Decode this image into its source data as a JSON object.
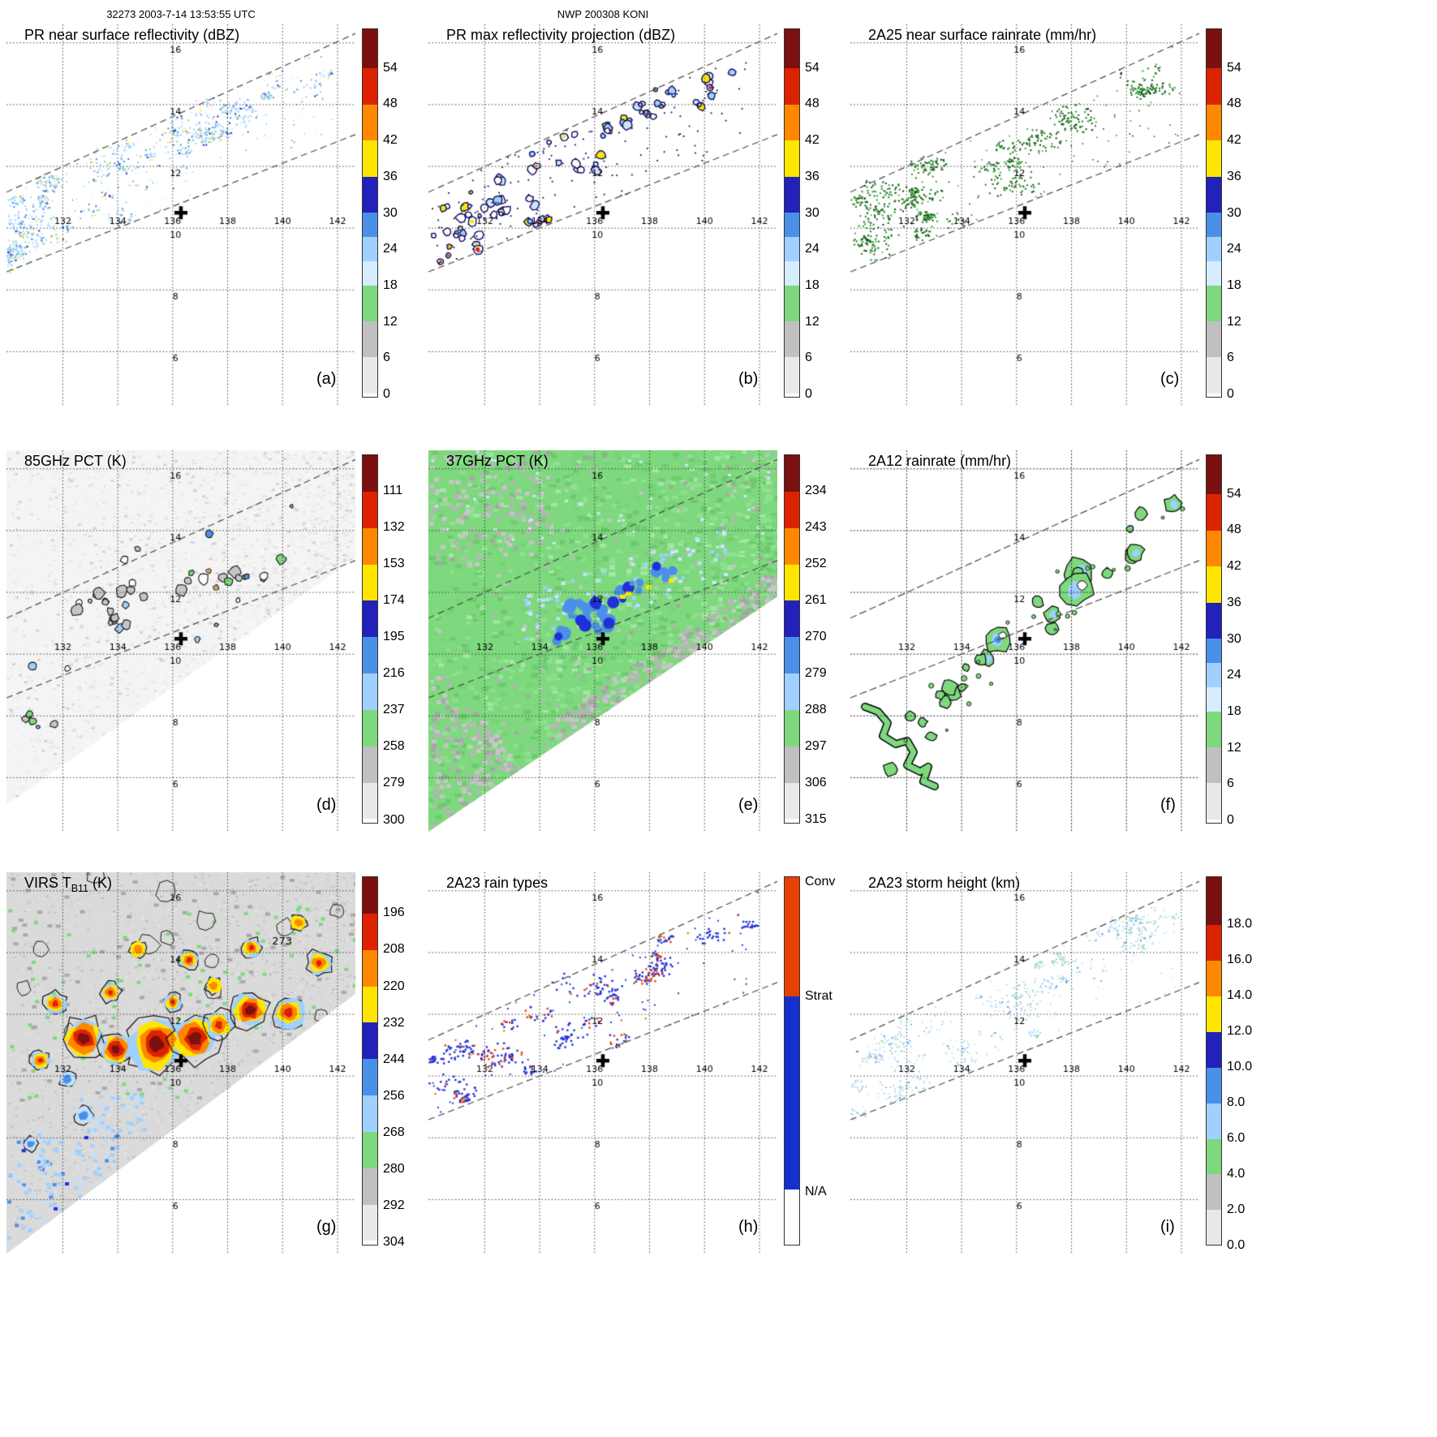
{
  "header": {
    "left": "32273 2003-7-14 13:53:55 UTC",
    "center": "NWP 200308 KONI"
  },
  "map": {
    "lon_min": 129.95,
    "lon_max": 142.65,
    "lat_min": 4.25,
    "lat_max": 16.6,
    "lon_ticks": [
      {
        "v": 132,
        "label": "132"
      },
      {
        "v": 134,
        "label": "134"
      },
      {
        "v": 136,
        "label": "136"
      },
      {
        "v": 138,
        "label": "138"
      },
      {
        "v": 140,
        "label": "140"
      },
      {
        "v": 142,
        "label": "142"
      }
    ],
    "lat_ticks": [
      {
        "v": 16,
        "label": "16"
      },
      {
        "v": 14,
        "label": "14"
      },
      {
        "v": 12,
        "label": "12"
      },
      {
        "v": 10,
        "label": "10"
      },
      {
        "v": 8,
        "label": "8"
      },
      {
        "v": 6,
        "label": "6"
      }
    ],
    "cross": {
      "lon": 136.3,
      "lat": 10.5
    },
    "swath_lines": {
      "upper": [
        [
          0,
          0.44
        ],
        [
          1,
          0.024
        ]
      ],
      "lower": [
        [
          0,
          0.649
        ],
        [
          1,
          0.289
        ]
      ]
    }
  },
  "colorbars": {
    "dbz": {
      "ticks": [
        {
          "label": "54",
          "pos": 0.107
        },
        {
          "label": "48",
          "pos": 0.205
        },
        {
          "label": "42",
          "pos": 0.303
        },
        {
          "label": "36",
          "pos": 0.402
        },
        {
          "label": "30",
          "pos": 0.5
        },
        {
          "label": "24",
          "pos": 0.598
        },
        {
          "label": "18",
          "pos": 0.697
        },
        {
          "label": "12",
          "pos": 0.795
        },
        {
          "label": "6",
          "pos": 0.893
        },
        {
          "label": "0",
          "pos": 0.992
        }
      ],
      "segments": [
        {
          "color": "#7b1010",
          "frac": 0.107
        },
        {
          "color": "#dd2200",
          "frac": 0.098
        },
        {
          "color": "#ff8800",
          "frac": 0.098
        },
        {
          "color": "#ffe600",
          "frac": 0.098
        },
        {
          "color": "#2222bb",
          "frac": 0.098
        },
        {
          "color": "#4a90e8",
          "frac": 0.066
        },
        {
          "color": "#9fd0ff",
          "frac": 0.066
        },
        {
          "color": "#d6ecff",
          "frac": 0.066
        },
        {
          "color": "#7ed87e",
          "frac": 0.098
        },
        {
          "color": "#c0c0c0",
          "frac": 0.098
        },
        {
          "color": "#e9e9e9",
          "frac": 0.098
        },
        {
          "color": "#ffffff",
          "frac": 0.009
        }
      ]
    },
    "pct85": {
      "ticks": [
        {
          "label": "111",
          "pos": 0.099
        },
        {
          "label": "132",
          "pos": 0.198
        },
        {
          "label": "153",
          "pos": 0.297
        },
        {
          "label": "174",
          "pos": 0.396
        },
        {
          "label": "195",
          "pos": 0.495
        },
        {
          "label": "216",
          "pos": 0.594
        },
        {
          "label": "237",
          "pos": 0.693
        },
        {
          "label": "258",
          "pos": 0.792
        },
        {
          "label": "279",
          "pos": 0.891
        },
        {
          "label": "300",
          "pos": 0.991
        }
      ],
      "segments": [
        {
          "color": "#7b1010",
          "frac": 0.099
        },
        {
          "color": "#dd2200",
          "frac": 0.099
        },
        {
          "color": "#ff8800",
          "frac": 0.099
        },
        {
          "color": "#ffe600",
          "frac": 0.099
        },
        {
          "color": "#2222bb",
          "frac": 0.099
        },
        {
          "color": "#4a90e8",
          "frac": 0.099
        },
        {
          "color": "#9fd0ff",
          "frac": 0.099
        },
        {
          "color": "#7ed87e",
          "frac": 0.099
        },
        {
          "color": "#c0c0c0",
          "frac": 0.099
        },
        {
          "color": "#e9e9e9",
          "frac": 0.099
        },
        {
          "color": "#ffffff",
          "frac": 0.01
        }
      ]
    },
    "pct37": {
      "ticks": [
        {
          "label": "234",
          "pos": 0.099
        },
        {
          "label": "243",
          "pos": 0.198
        },
        {
          "label": "252",
          "pos": 0.297
        },
        {
          "label": "261",
          "pos": 0.396
        },
        {
          "label": "270",
          "pos": 0.495
        },
        {
          "label": "279",
          "pos": 0.593
        },
        {
          "label": "288",
          "pos": 0.692
        },
        {
          "label": "297",
          "pos": 0.791
        },
        {
          "label": "306",
          "pos": 0.89
        },
        {
          "label": "315",
          "pos": 0.989
        }
      ],
      "segments": [
        {
          "color": "#7b1010",
          "frac": 0.099
        },
        {
          "color": "#dd2200",
          "frac": 0.099
        },
        {
          "color": "#ff8800",
          "frac": 0.099
        },
        {
          "color": "#ffe600",
          "frac": 0.099
        },
        {
          "color": "#2222bb",
          "frac": 0.099
        },
        {
          "color": "#4a90e8",
          "frac": 0.099
        },
        {
          "color": "#9fd0ff",
          "frac": 0.099
        },
        {
          "color": "#7ed87e",
          "frac": 0.099
        },
        {
          "color": "#c0c0c0",
          "frac": 0.099
        },
        {
          "color": "#e9e9e9",
          "frac": 0.099
        },
        {
          "color": "#ffffff",
          "frac": 0.01
        }
      ]
    },
    "virs": {
      "ticks": [
        {
          "label": "196",
          "pos": 0.099
        },
        {
          "label": "208",
          "pos": 0.198
        },
        {
          "label": "220",
          "pos": 0.298
        },
        {
          "label": "232",
          "pos": 0.397
        },
        {
          "label": "244",
          "pos": 0.496
        },
        {
          "label": "256",
          "pos": 0.595
        },
        {
          "label": "268",
          "pos": 0.694
        },
        {
          "label": "280",
          "pos": 0.793
        },
        {
          "label": "292",
          "pos": 0.893
        },
        {
          "label": "304",
          "pos": 0.992
        }
      ],
      "segments": [
        {
          "color": "#7b1010",
          "frac": 0.099
        },
        {
          "color": "#dd2200",
          "frac": 0.099
        },
        {
          "color": "#ff8800",
          "frac": 0.099
        },
        {
          "color": "#ffe600",
          "frac": 0.099
        },
        {
          "color": "#2222bb",
          "frac": 0.099
        },
        {
          "color": "#4a90e8",
          "frac": 0.099
        },
        {
          "color": "#9fd0ff",
          "frac": 0.099
        },
        {
          "color": "#7ed87e",
          "frac": 0.099
        },
        {
          "color": "#c0c0c0",
          "frac": 0.099
        },
        {
          "color": "#e9e9e9",
          "frac": 0.099
        },
        {
          "color": "#ffffff",
          "frac": 0.01
        }
      ]
    },
    "height": {
      "ticks": [
        {
          "label": "18.0",
          "pos": 0.13
        },
        {
          "label": "16.0",
          "pos": 0.227
        },
        {
          "label": "14.0",
          "pos": 0.324
        },
        {
          "label": "12.0",
          "pos": 0.42
        },
        {
          "label": "10.0",
          "pos": 0.517
        },
        {
          "label": "8.0",
          "pos": 0.614
        },
        {
          "label": "6.0",
          "pos": 0.71
        },
        {
          "label": "4.0",
          "pos": 0.807
        },
        {
          "label": "2.0",
          "pos": 0.903
        },
        {
          "label": "0.0",
          "pos": 1.0
        }
      ],
      "segments": [
        {
          "color": "#7b1010",
          "frac": 0.13
        },
        {
          "color": "#dd2200",
          "frac": 0.097
        },
        {
          "color": "#ff8800",
          "frac": 0.097
        },
        {
          "color": "#ffe600",
          "frac": 0.097
        },
        {
          "color": "#2222bb",
          "frac": 0.097
        },
        {
          "color": "#4a90e8",
          "frac": 0.097
        },
        {
          "color": "#9fd0ff",
          "frac": 0.097
        },
        {
          "color": "#7ed87e",
          "frac": 0.097
        },
        {
          "color": "#c0c0c0",
          "frac": 0.097
        },
        {
          "color": "#e9e9e9",
          "frac": 0.094
        }
      ]
    },
    "raintype": {
      "ticks": [
        {
          "label": "Conv",
          "pos": 0.01
        },
        {
          "label": "Strat",
          "pos": 0.325
        },
        {
          "label": "N/A",
          "pos": 0.855
        }
      ],
      "segments": [
        {
          "color": "#e84000",
          "frac": 0.325
        },
        {
          "color": "#1530cf",
          "frac": 0.525
        },
        {
          "color": "#ffffff",
          "frac": 0.15
        }
      ]
    }
  },
  "chart_data": [
    {
      "id": "a",
      "label": "(a)",
      "type": "heatmap",
      "title": "PR near surface reflectivity (dBZ)",
      "colorbar": "dbz",
      "render": {
        "kind": "speckle",
        "seed": 101,
        "size": 2,
        "clusters": 56,
        "per": [
          8,
          34
        ],
        "tExp": 1.45,
        "singles": 130,
        "dashes": true,
        "palette": [
          [
            "#9fd0ff",
            40
          ],
          [
            "#d6ecff",
            22
          ],
          [
            "#4a90e8",
            14
          ],
          [
            "#7ed87e",
            9
          ],
          [
            "#2222bb",
            6
          ],
          [
            "#ffe600",
            3
          ],
          [
            "#ff8800",
            1.5
          ],
          [
            "#dd2200",
            0.8
          ]
        ]
      }
    },
    {
      "id": "b",
      "label": "(b)",
      "type": "heatmap",
      "title": "PR max reflectivity projection (dBZ)",
      "colorbar": "dbz",
      "render": {
        "kind": "pr-blobs",
        "seed": 202,
        "dashes": true,
        "outline": "#0b0b5e",
        "warm": [
          "#ffe600",
          "#ff8800",
          "#dd2200"
        ]
      }
    },
    {
      "id": "c",
      "label": "(c)",
      "type": "heatmap",
      "title": "2A25 near surface rainrate (mm/hr)",
      "colorbar": "dbz",
      "render": {
        "kind": "speckle",
        "seed": 303,
        "size": 2,
        "clusters": 50,
        "per": [
          7,
          28
        ],
        "tExp": 1.45,
        "singles": 110,
        "dashes": true,
        "palette": [
          [
            "#1d7a1d",
            5
          ],
          [
            "#135a13",
            3
          ],
          [
            "#2f9e2f",
            3
          ],
          [
            "#0b3d0b",
            2
          ]
        ]
      }
    },
    {
      "id": "d",
      "label": "(d)",
      "type": "heatmap",
      "title": "85GHz PCT (K)",
      "colorbar": "pct85",
      "render": {
        "kind": "tmi85",
        "seed": 404,
        "dashes": true
      }
    },
    {
      "id": "e",
      "label": "(e)",
      "type": "heatmap",
      "title": "37GHz PCT (K)",
      "colorbar": "pct37",
      "render": {
        "kind": "tmi37",
        "seed": 505,
        "dashes": true,
        "blue_clusters": [
          [
            205,
            195
          ],
          [
            185,
            210
          ],
          [
            235,
            180
          ],
          [
            160,
            228
          ],
          [
            255,
            170
          ],
          [
            215,
            215
          ],
          [
            290,
            150
          ],
          [
            180,
            192
          ]
        ],
        "yellow": [
          [
            243,
            174
          ],
          [
            268,
            166
          ],
          [
            296,
            158
          ],
          [
            236,
            178
          ]
        ]
      }
    },
    {
      "id": "f",
      "label": "(f)",
      "type": "heatmap",
      "title": "2A12 rainrate (mm/hr)",
      "colorbar": "dbz",
      "render": {
        "kind": "tmi-rain",
        "seed": 606,
        "dashes": true,
        "snake": [
          [
            18,
            316
          ],
          [
            34,
            322
          ],
          [
            46,
            336
          ],
          [
            40,
            352
          ],
          [
            56,
            362
          ],
          [
            70,
            358
          ],
          [
            78,
            372
          ],
          [
            70,
            388
          ],
          [
            86,
            396
          ],
          [
            96,
            390
          ],
          [
            90,
            408
          ],
          [
            104,
            414
          ]
        ]
      }
    },
    {
      "id": "g",
      "label": "(g)",
      "type": "heatmap",
      "title": "VIRS TB11 (K)",
      "title_parts": [
        {
          "t": "VIRS T"
        },
        {
          "t": "B11",
          "sub": true
        },
        {
          "t": " (K)"
        }
      ],
      "colorbar": "virs",
      "annotations": [
        {
          "text": "273",
          "x": 0.79,
          "y": 0.19
        }
      ],
      "render": {
        "kind": "virs",
        "seed": 707,
        "dashes": false,
        "blobs": [
          [
            95,
            205,
            24,
            "full"
          ],
          [
            135,
            218,
            18,
            "full"
          ],
          [
            185,
            212,
            32,
            "full"
          ],
          [
            232,
            205,
            26,
            "full"
          ],
          [
            262,
            188,
            16,
            "orange"
          ],
          [
            60,
            162,
            13,
            "orange"
          ],
          [
            128,
            148,
            11,
            "orange"
          ],
          [
            42,
            232,
            11,
            "orange"
          ],
          [
            300,
            170,
            20,
            "full"
          ],
          [
            348,
            173,
            18,
            "orange"
          ],
          [
            385,
            112,
            14,
            "orange"
          ],
          [
            225,
            108,
            11,
            "orange"
          ],
          [
            162,
            95,
            9,
            "warm"
          ],
          [
            302,
            93,
            11,
            "orange"
          ],
          [
            360,
            62,
            9,
            "warm"
          ],
          [
            95,
            300,
            10,
            "cool"
          ],
          [
            30,
            335,
            8,
            "cool"
          ],
          [
            75,
            255,
            9,
            "cool"
          ],
          [
            255,
            140,
            9,
            "warm"
          ],
          [
            205,
            160,
            10,
            "orange"
          ]
        ]
      }
    },
    {
      "id": "h",
      "label": "(h)",
      "type": "heatmap",
      "title": "2A23 rain types",
      "colorbar": "raintype",
      "render": {
        "kind": "speckle",
        "seed": 808,
        "size": 2.4,
        "clusters": 34,
        "per": [
          6,
          24
        ],
        "tExp": 1.3,
        "singles": 90,
        "dashes": true,
        "mix": {
          "base": "#2030d8",
          "alt": "#e84000",
          "altClusterProb": 0.45,
          "altFracHigh": 0.38,
          "altFracLow": 0.06
        }
      }
    },
    {
      "id": "i",
      "label": "(i)",
      "type": "heatmap",
      "title": "2A23 storm height (km)",
      "colorbar": "height",
      "render": {
        "kind": "speckle",
        "seed": 909,
        "size": 2,
        "clusters": 46,
        "per": [
          6,
          24
        ],
        "tExp": 1.15,
        "singles": 110,
        "dashes": true,
        "palette": [
          [
            "#bfe9ff",
            35
          ],
          [
            "#9fd0ff",
            25
          ],
          [
            "#a8e0a8",
            15
          ],
          [
            "#cfcfcf",
            15
          ],
          [
            "#4a90e8",
            6
          ],
          [
            "#7ed87e",
            4
          ]
        ]
      }
    }
  ]
}
